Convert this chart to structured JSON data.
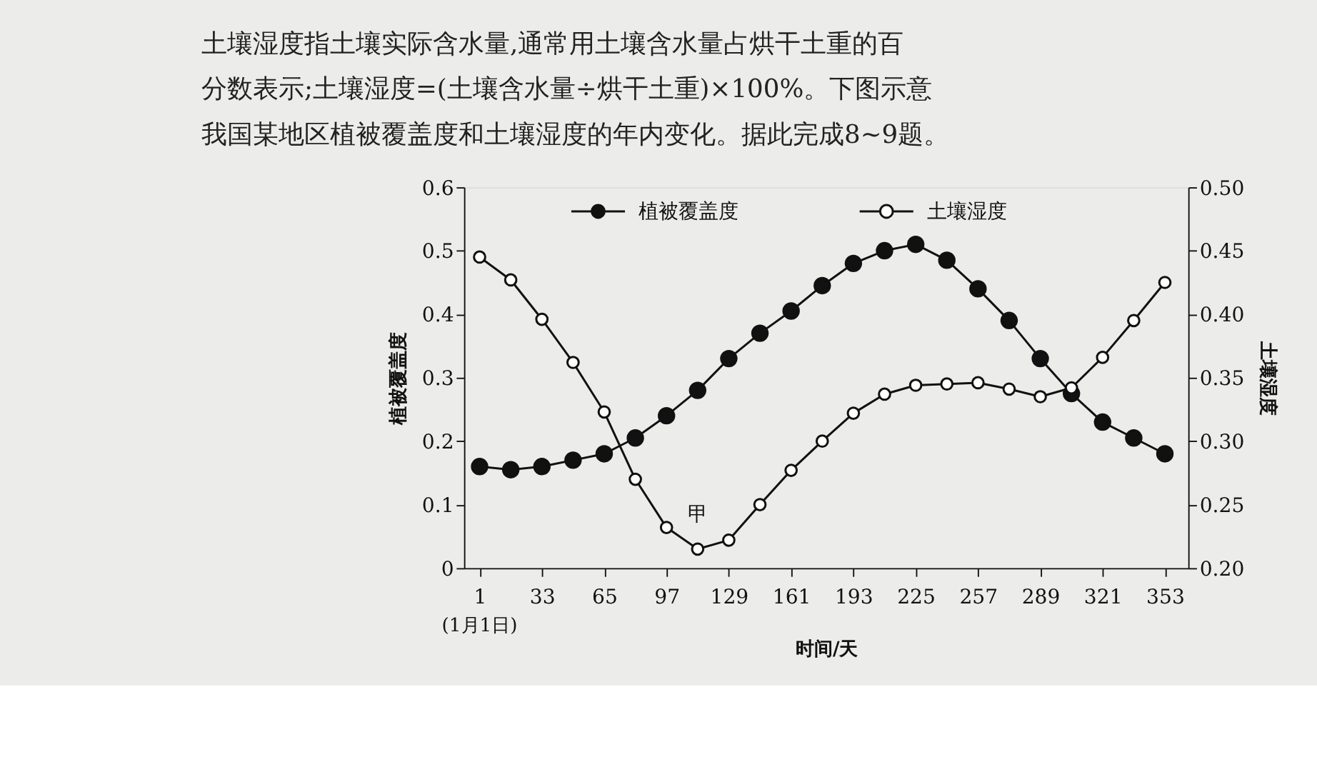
{
  "chart_data": {
    "type": "line",
    "annotations": [
      "土壤湿度指土壤实际含水量,通常用土壤含水量占烘干土重的百",
      "分数表示;土壤湿度=(土壤含水量÷烘干土重)×100%。下图示意",
      "我国某地区植被覆盖度和土壤湿度的年内变化。据此完成8~9题。",
      "(1月1日)",
      "甲"
    ],
    "xlabel": "时间/天",
    "ylabel": "植被覆盖度",
    "y2label": "土壤湿度",
    "x": [
      1,
      17,
      33,
      49,
      65,
      81,
      97,
      113,
      129,
      145,
      161,
      177,
      193,
      209,
      225,
      241,
      257,
      273,
      289,
      305,
      321,
      337,
      353
    ],
    "series": [
      {
        "name": "植被覆盖度",
        "color": "#111111",
        "values": [
          0.16,
          0.155,
          0.16,
          0.17,
          0.18,
          0.205,
          0.24,
          0.28,
          0.33,
          0.37,
          0.405,
          0.445,
          0.48,
          0.5,
          0.51,
          0.485,
          0.44,
          0.39,
          0.33,
          0.275,
          0.23,
          0.205,
          0.18
        ]
      },
      {
        "name": "土壤湿度",
        "color": "#111111",
        "axis": "y2",
        "values": [
          0.445,
          0.427,
          0.396,
          0.362,
          0.323,
          0.27,
          0.232,
          0.215,
          0.222,
          0.25,
          0.277,
          0.3,
          0.322,
          0.337,
          0.344,
          0.345,
          0.346,
          0.341,
          0.335,
          0.342,
          0.366,
          0.395,
          0.425
        ]
      }
    ],
    "xlim": [
      -7,
      365
    ],
    "xticks": [
      1,
      33,
      65,
      97,
      129,
      161,
      193,
      225,
      257,
      289,
      321,
      353
    ],
    "ylim": [
      0,
      0.6
    ],
    "yticks": [
      0,
      0.1,
      0.2,
      0.3,
      0.4,
      0.5,
      0.6
    ],
    "y2lim": [
      0.2,
      0.5
    ],
    "y2ticks": [
      {
        "value": 0.2,
        "label": "0.20"
      },
      {
        "value": 0.25,
        "label": "0.25"
      },
      {
        "value": 0.3,
        "label": "0.30"
      },
      {
        "value": 0.35,
        "label": "0.35"
      },
      {
        "value": 0.4,
        "label": "0.40"
      },
      {
        "value": 0.45,
        "label": "0.45"
      },
      {
        "value": 0.5,
        "label": "0.50"
      }
    ],
    "grid": false,
    "legend": "top",
    "marker": "circle",
    "line_style": "solid"
  }
}
